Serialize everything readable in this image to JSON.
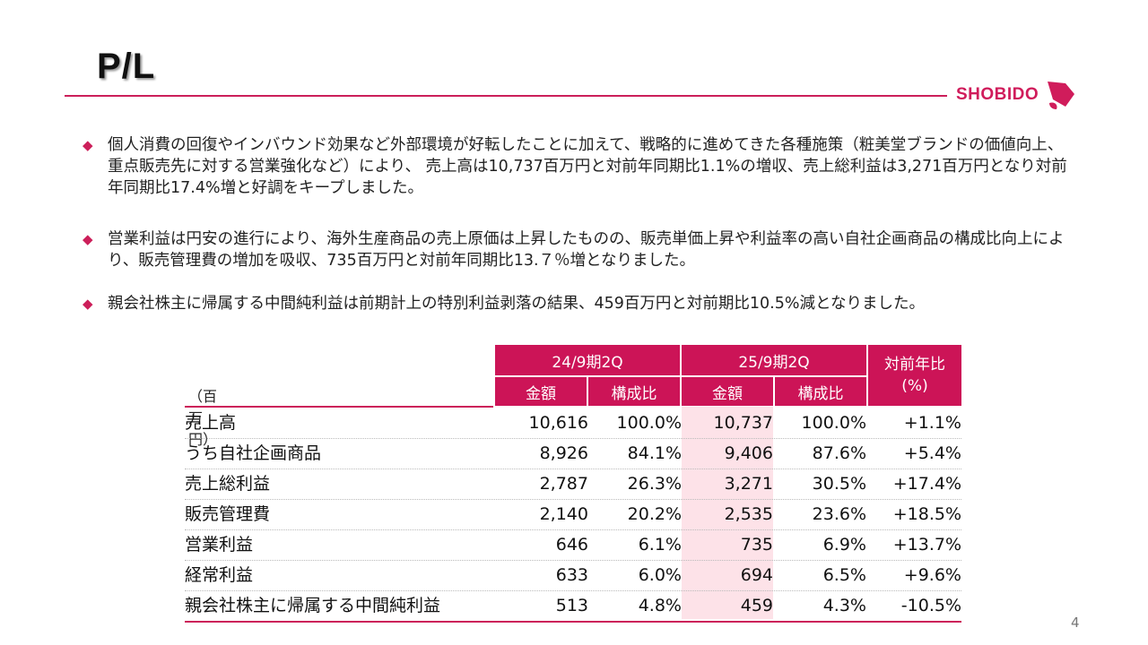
{
  "title": "P/L",
  "logo": {
    "text": "SHOBIDO",
    "brand_color": "#d01c5b"
  },
  "bullets": [
    "個人消費の回復やインバウンド効果など外部環境が好転したことに加えて、戦略的に進めてきた各種施策（粧美堂ブランドの価値向上、重点販売先に対する営業強化など）により、 売上高は10,737百万円と対前年同期比1.1%の増収、売上総利益は3,271百万円となり対前年同期比17.4%増と好調をキープしました。",
    "営業利益は円安の進行により、海外生産商品の売上原価は上昇したものの、販売単価上昇や利益率の高い自社企画商品の構成比向上により、販売管理費の増加を吸収、735百万円と対前年同期比13.７％増となりました。",
    "親会社株主に帰属する中間純利益は前期計上の特別利益剥落の結果、459百万円と対前期比10.5%減となりました。"
  ],
  "table": {
    "unit": "（百万円）",
    "period1": "24/9期2Q",
    "period2": "25/9期2Q",
    "yoy_header": "対前年比\n(%)",
    "col_amount": "金額",
    "col_ratio": "構成比",
    "rows": [
      {
        "label": "売上高",
        "v1": "10,616",
        "r1": "100.0%",
        "v2": "10,737",
        "r2": "100.0%",
        "yoy": "+1.1%"
      },
      {
        "label": "うち自社企画商品",
        "v1": "8,926",
        "r1": "84.1%",
        "v2": "9,406",
        "r2": "87.6%",
        "yoy": "+5.4%"
      },
      {
        "label": "売上総利益",
        "v1": "2,787",
        "r1": "26.3%",
        "v2": "3,271",
        "r2": "30.5%",
        "yoy": "+17.4%"
      },
      {
        "label": "販売管理費",
        "v1": "2,140",
        "r1": "20.2%",
        "v2": "2,535",
        "r2": "23.6%",
        "yoy": "+18.5%"
      },
      {
        "label": "営業利益",
        "v1": "646",
        "r1": "6.1%",
        "v2": "735",
        "r2": "6.9%",
        "yoy": "+13.7%"
      },
      {
        "label": "経常利益",
        "v1": "633",
        "r1": "6.0%",
        "v2": "694",
        "r2": "6.5%",
        "yoy": "+9.6%"
      },
      {
        "label": "親会社株主に帰属する中間純利益",
        "v1": "513",
        "r1": "4.8%",
        "v2": "459",
        "r2": "4.3%",
        "yoy": "-10.5%"
      }
    ]
  },
  "page_number": "4",
  "colors": {
    "accent": "#cc1457",
    "highlight": "#fde2e8"
  }
}
